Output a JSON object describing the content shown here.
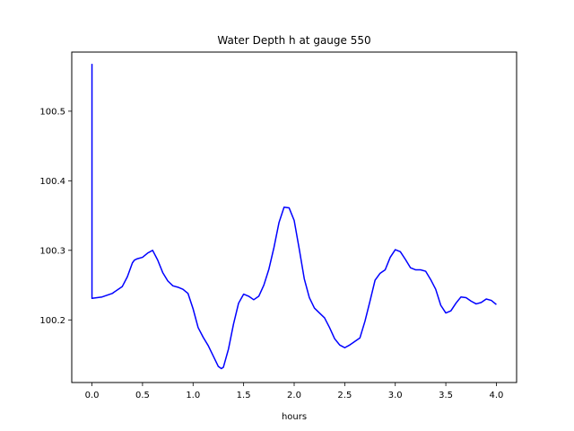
{
  "chart_data": {
    "type": "line",
    "title": "Water Depth h at gauge 550",
    "xlabel": "hours",
    "ylabel": "",
    "xlim": [
      -0.2,
      4.2
    ],
    "ylim": [
      100.11,
      100.585
    ],
    "xticks": [
      0.0,
      0.5,
      1.0,
      1.5,
      2.0,
      2.5,
      3.0,
      3.5,
      4.0
    ],
    "xtick_labels": [
      "0.0",
      "0.5",
      "1.0",
      "1.5",
      "2.0",
      "2.5",
      "3.0",
      "3.5",
      "4.0"
    ],
    "yticks": [
      100.2,
      100.3,
      100.4,
      100.5
    ],
    "ytick_labels": [
      "100.2",
      "100.3",
      "100.4",
      "100.5"
    ],
    "grid": false,
    "series": [
      {
        "color": "#0000ff",
        "x": [
          0.0,
          0.0,
          0.0,
          0.1,
          0.2,
          0.3,
          0.35,
          0.4,
          0.42,
          0.45,
          0.5,
          0.55,
          0.6,
          0.65,
          0.7,
          0.75,
          0.8,
          0.85,
          0.9,
          0.95,
          1.0,
          1.05,
          1.1,
          1.15,
          1.2,
          1.25,
          1.28,
          1.3,
          1.35,
          1.4,
          1.45,
          1.5,
          1.55,
          1.6,
          1.65,
          1.7,
          1.75,
          1.8,
          1.85,
          1.9,
          1.95,
          2.0,
          2.05,
          2.1,
          2.15,
          2.2,
          2.25,
          2.3,
          2.35,
          2.4,
          2.45,
          2.5,
          2.55,
          2.6,
          2.65,
          2.7,
          2.75,
          2.8,
          2.85,
          2.9,
          2.95,
          3.0,
          3.05,
          3.1,
          3.15,
          3.2,
          3.25,
          3.3,
          3.35,
          3.4,
          3.45,
          3.5,
          3.55,
          3.6,
          3.65,
          3.7,
          3.75,
          3.8,
          3.85,
          3.9,
          3.95,
          4.0
        ],
        "y": [
          100.568,
          100.568,
          100.231,
          100.233,
          100.238,
          100.248,
          100.262,
          100.282,
          100.286,
          100.288,
          100.29,
          100.296,
          100.3,
          100.286,
          100.268,
          100.256,
          100.249,
          100.247,
          100.244,
          100.238,
          100.216,
          100.189,
          100.175,
          100.163,
          100.148,
          100.133,
          100.13,
          100.132,
          100.158,
          100.194,
          100.224,
          100.237,
          100.234,
          100.229,
          100.234,
          100.25,
          100.273,
          100.304,
          100.34,
          100.362,
          100.361,
          100.343,
          100.302,
          100.259,
          100.232,
          100.217,
          100.21,
          100.203,
          100.189,
          100.173,
          100.164,
          100.16,
          100.164,
          100.169,
          100.174,
          100.198,
          100.227,
          100.257,
          100.267,
          100.272,
          100.29,
          100.301,
          100.298,
          100.287,
          100.275,
          100.272,
          100.272,
          100.27,
          100.258,
          100.244,
          100.221,
          100.21,
          100.213,
          100.224,
          100.233,
          100.232,
          100.227,
          100.223,
          100.225,
          100.23,
          100.228,
          100.222
        ]
      }
    ]
  }
}
